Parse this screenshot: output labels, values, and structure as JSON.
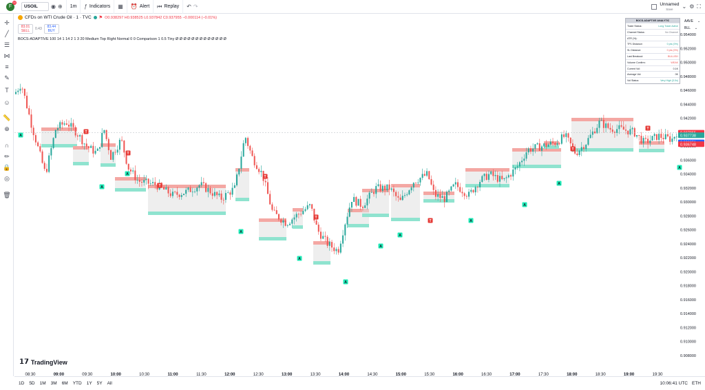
{
  "header": {
    "avatar_letter": "F",
    "notif_count": "11",
    "symbol": "USOIL",
    "interval": "1m",
    "indicators": "Indicators",
    "alert": "Alert",
    "replay": "Replay",
    "layout_name": "Unnamed",
    "layout_sub": "Save"
  },
  "legend": {
    "title": "CFDs on WTI Crude Oil · 1 · TVC",
    "ohlc": "O0.938297 H0.938525 L0.937842 C0.937955 −0.000114 (−0.01%)",
    "sell_price": "83.01",
    "sell_label": "SELL",
    "spread": "0.43",
    "buy_price": "83.44",
    "buy_label": "BUY",
    "indicator": "BOCS-ADAPTIVE 100 14 1 14 2 1 3 20 Medium Top Right Normal 0 0 Comparison 1 0.5 Tiny  Ø Ø Ø Ø Ø Ø Ø Ø Ø Ø Ø Ø Ø"
  },
  "stats_table": {
    "title": "BOCS-ADAPTIVE ANALYTIC",
    "rows": [
      {
        "k": "Trade Status:",
        "v": "Long Trade Active"
      },
      {
        "k": "Channel Status:",
        "v": "No Channel"
      },
      {
        "k": "ATR (%):",
        "v": ""
      },
      {
        "k": "TP1 Distance:",
        "v": "0 pts (0%)"
      },
      {
        "k": "SL Distance:",
        "v": "0 pts (0%)"
      },
      {
        "k": "Last Breakout:",
        "v": "BULLISH"
      },
      {
        "k": "Volume Confirm:",
        "v": "WEAK"
      },
      {
        "k": "Current Vol:",
        "v": "0.1K"
      },
      {
        "k": "Average Vol:",
        "v": "0K"
      },
      {
        "k": "Vol Status:",
        "v": "Very High (3.0x)"
      }
    ]
  },
  "right_menu": {
    "item1": "AAVE",
    "item2": "BLL"
  },
  "price_axis": [
    "0.954000",
    "0.952000",
    "0.950000",
    "0.948000",
    "0.946000",
    "0.944000",
    "0.942000",
    "0.940000",
    "0.938000",
    "0.936000",
    "0.934000",
    "0.932000",
    "0.930000",
    "0.928000",
    "0.926000",
    "0.924000",
    "0.922000",
    "0.920000",
    "0.918000",
    "0.916000",
    "0.914000",
    "0.912000",
    "0.910000",
    "0.908000"
  ],
  "price_tags": {
    "last": "0.937955",
    "t2": "0.937738",
    "t3": "0.936851",
    "t4": "0.936748"
  },
  "time_axis": [
    "08:30",
    "09:00",
    "09:30",
    "10:00",
    "10:30",
    "11:00",
    "11:30",
    "12:00",
    "12:30",
    "13:00",
    "13:30",
    "14:00",
    "14:30",
    "15:00",
    "15:30",
    "16:00",
    "16:30",
    "17:00",
    "17:30",
    "18:00",
    "18:30",
    "19:00",
    "19:30"
  ],
  "signals": {
    "buy": "A",
    "sell": "T"
  },
  "brand": "TradingView",
  "ranges": [
    "1D",
    "5D",
    "1M",
    "3M",
    "6M",
    "YTD",
    "1Y",
    "5Y",
    "All"
  ],
  "clock": "10:06:41 UTC",
  "session": "ETH",
  "colors": {
    "up": "#26a69a",
    "down": "#ef5350",
    "sell_box": "#f4a7a3",
    "buy_box": "#8fe3cf",
    "range_box": "#e0e0e0",
    "accent": "#2962ff"
  },
  "chart_data": {
    "type": "candlestick",
    "x_range": [
      "08:10",
      "20:00"
    ],
    "ylim": [
      0.907,
      0.955
    ],
    "last_price": 0.937955
  }
}
